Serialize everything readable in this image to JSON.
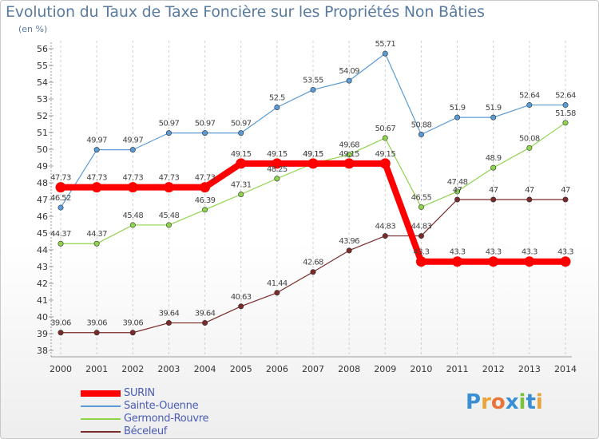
{
  "title": "Evolution du Taux de Taxe Foncière sur les Propriétés Non Bâties",
  "subtitle": "(en %)",
  "logo_text": "Proxiti",
  "chart_data": {
    "type": "line",
    "title": "Evolution du Taux de Taxe Foncière sur les Propriétés Non Bâties",
    "subtitle": "(en %)",
    "xlabel": "",
    "ylabel": "",
    "categories": [
      "2000",
      "2001",
      "2002",
      "2003",
      "2004",
      "2005",
      "2006",
      "2007",
      "2008",
      "2009",
      "2010",
      "2011",
      "2012",
      "2013",
      "2014"
    ],
    "ylim": [
      38,
      56
    ],
    "yticks": [
      38,
      39,
      40,
      41,
      42,
      43,
      44,
      45,
      46,
      47,
      48,
      49,
      50,
      51,
      52,
      53,
      54,
      55,
      56
    ],
    "grid": "vertical dashed",
    "legend_position": "bottom-left",
    "series": [
      {
        "name": "SURIN",
        "color": "#ff0000",
        "values": [
          47.73,
          47.73,
          47.73,
          47.73,
          47.73,
          49.15,
          49.15,
          49.15,
          49.15,
          49.15,
          43.3,
          43.3,
          43.3,
          43.3,
          43.3
        ],
        "labels": [
          "47.73",
          "47.73",
          "47.73",
          "47.73",
          "47.73",
          "49.15",
          "49.15",
          "49.15",
          "49.15",
          "49.15",
          "43.3",
          "43.3",
          "43.3",
          "43.3",
          "43.3"
        ]
      },
      {
        "name": "Sainte-Ouenne",
        "color": "#5b9bd5",
        "values": [
          46.52,
          49.97,
          49.97,
          50.97,
          50.97,
          50.97,
          52.5,
          53.55,
          54.09,
          55.71,
          50.88,
          51.9,
          51.9,
          52.64,
          52.64
        ],
        "labels": [
          "46.52",
          "49.97",
          "49.97",
          "50.97",
          "50.97",
          "50.97",
          "52.5",
          "53.55",
          "54.09",
          "55.71",
          "50.88",
          "51.9",
          "51.9",
          "52.64",
          "52.64"
        ]
      },
      {
        "name": "Germond-Rouvre",
        "color": "#8ed44b",
        "values": [
          44.37,
          44.37,
          45.48,
          45.48,
          46.39,
          47.31,
          48.25,
          49.15,
          49.68,
          50.67,
          46.55,
          47.48,
          48.9,
          50.08,
          51.58
        ],
        "labels": [
          "44.37",
          "44.37",
          "45.48",
          "45.48",
          "46.39",
          "47.31",
          "48.25",
          "49.15",
          "49.68",
          "50.67",
          "46.55",
          "47.48",
          "48.9",
          "50.08",
          "51.58"
        ]
      },
      {
        "name": "Béceleuf",
        "color": "#7b2a2a",
        "values": [
          39.06,
          39.06,
          39.06,
          39.64,
          39.64,
          40.63,
          41.44,
          42.68,
          43.96,
          44.83,
          44.83,
          47,
          47,
          47,
          47
        ],
        "labels": [
          "39.06",
          "39.06",
          "39.06",
          "39.64",
          "39.64",
          "40.63",
          "41.44",
          "42.68",
          "43.96",
          "44.83",
          "44.83",
          "47",
          "47",
          "47",
          "47"
        ]
      }
    ]
  }
}
